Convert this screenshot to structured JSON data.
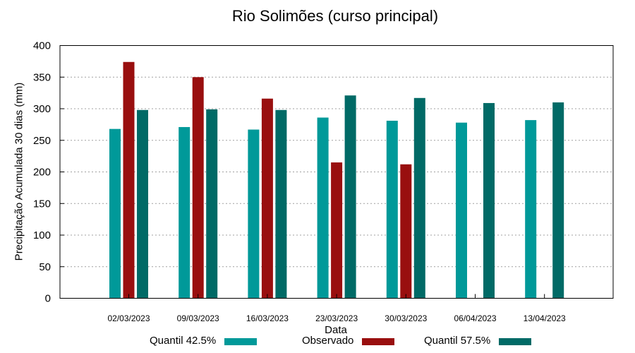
{
  "chart_data": {
    "type": "bar",
    "title": "Rio Solimões (curso principal)",
    "xlabel": "Data",
    "ylabel": "Precipitação Acumulada 30 dias (mm)",
    "ylim": [
      0,
      400
    ],
    "yticks": [
      0,
      50,
      100,
      150,
      200,
      250,
      300,
      350,
      400
    ],
    "grid": "horizontal dotted",
    "legend_position": "bottom",
    "categories": [
      "02/03/2023",
      "09/03/2023",
      "16/03/2023",
      "23/03/2023",
      "30/03/2023",
      "06/04/2023",
      "13/04/2023"
    ],
    "series": [
      {
        "name": "Quantil 42.5%",
        "color": "#009999",
        "values": [
          268,
          271,
          267,
          286,
          281,
          278,
          282
        ]
      },
      {
        "name": "Observado",
        "color": "#990f0f",
        "values": [
          374,
          350,
          316,
          215,
          212,
          null,
          null
        ]
      },
      {
        "name": "Quantil 57.5%",
        "color": "#006a66",
        "values": [
          298,
          299,
          298,
          321,
          317,
          309,
          310
        ]
      }
    ]
  }
}
